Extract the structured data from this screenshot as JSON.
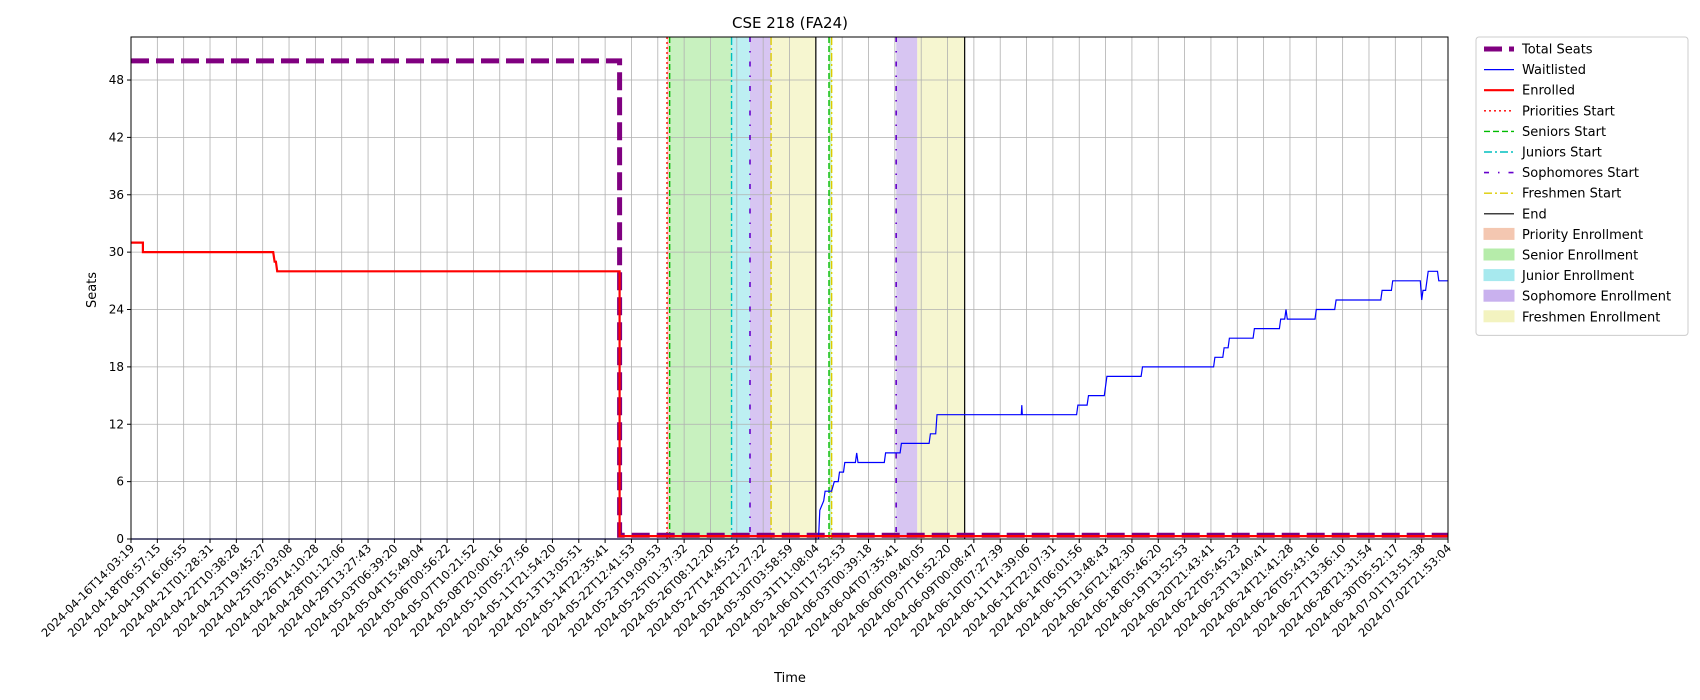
{
  "chart_data": {
    "type": "line",
    "title": "CSE 218 (FA24)",
    "xlabel": "Time",
    "ylabel": "Seats",
    "ylim": [
      0,
      52.5
    ],
    "yticks": [
      0,
      6,
      12,
      18,
      24,
      30,
      36,
      42,
      48
    ],
    "grid": true,
    "legend_position": "outside top-right",
    "x_tick_labels": [
      "2024-04-16T14:03:19",
      "2024-04-18T06:57:15",
      "2024-04-19T16:06:55",
      "2024-04-21T01:28:31",
      "2024-04-22T10:38:28",
      "2024-04-23T19:45:27",
      "2024-04-25T05:03:08",
      "2024-04-26T14:10:28",
      "2024-04-28T01:12:06",
      "2024-04-29T13:27:43",
      "2024-05-03T06:39:20",
      "2024-05-04T15:49:04",
      "2024-05-06T00:56:22",
      "2024-05-07T10:21:52",
      "2024-05-08T20:00:16",
      "2024-05-10T05:27:56",
      "2024-05-11T21:54:20",
      "2024-05-13T13:05:51",
      "2024-05-14T22:35:41",
      "2024-05-22T12:41:53",
      "2024-05-23T19:09:53",
      "2024-05-25T01:37:32",
      "2024-05-26T08:12:20",
      "2024-05-27T14:45:25",
      "2024-05-28T21:27:22",
      "2024-05-30T03:58:59",
      "2024-05-31T11:08:04",
      "2024-06-01T17:52:53",
      "2024-06-03T00:39:18",
      "2024-06-04T07:35:41",
      "2024-06-06T09:40:05",
      "2024-06-07T16:52:20",
      "2024-06-09T00:08:47",
      "2024-06-10T07:27:39",
      "2024-06-11T14:39:06",
      "2024-06-12T22:07:31",
      "2024-06-14T06:01:56",
      "2024-06-15T13:48:43",
      "2024-06-16T21:42:30",
      "2024-06-18T05:46:20",
      "2024-06-19T13:52:53",
      "2024-06-20T21:43:41",
      "2024-06-22T05:45:23",
      "2024-06-23T13:40:41",
      "2024-06-24T21:41:28",
      "2024-06-26T05:43:16",
      "2024-06-27T13:36:10",
      "2024-06-28T21:31:54",
      "2024-06-30T05:52:17",
      "2024-07-01T13:51:38",
      "2024-07-02T21:53:04"
    ],
    "x_range": [
      0,
      50
    ],
    "series": [
      {
        "name": "Total Seats",
        "color": "#800080",
        "style": "dashed-thick",
        "points": [
          [
            0,
            50
          ],
          [
            18.55,
            50
          ],
          [
            18.55,
            0.4
          ],
          [
            50,
            0.4
          ]
        ]
      },
      {
        "name": "Waitlisted",
        "color": "#0000ff",
        "style": "solid",
        "points": [
          [
            0,
            0
          ],
          [
            26.1,
            0
          ],
          [
            26.15,
            3
          ],
          [
            26.3,
            4
          ],
          [
            26.35,
            5
          ],
          [
            26.6,
            5
          ],
          [
            26.7,
            6
          ],
          [
            26.85,
            6
          ],
          [
            26.9,
            7
          ],
          [
            27.05,
            7
          ],
          [
            27.1,
            8
          ],
          [
            27.5,
            8
          ],
          [
            27.55,
            9
          ],
          [
            27.6,
            8
          ],
          [
            28.6,
            8
          ],
          [
            28.65,
            9
          ],
          [
            29.2,
            9
          ],
          [
            29.25,
            10
          ],
          [
            30.3,
            10
          ],
          [
            30.35,
            11
          ],
          [
            30.55,
            11
          ],
          [
            30.6,
            13
          ],
          [
            33.8,
            13
          ],
          [
            33.82,
            14
          ],
          [
            33.84,
            13
          ],
          [
            35.9,
            13
          ],
          [
            35.95,
            14
          ],
          [
            36.3,
            14
          ],
          [
            36.35,
            15
          ],
          [
            36.95,
            15
          ],
          [
            37.0,
            16
          ],
          [
            37.05,
            17
          ],
          [
            38.35,
            17
          ],
          [
            38.4,
            18
          ],
          [
            41.1,
            18
          ],
          [
            41.15,
            19
          ],
          [
            41.45,
            19
          ],
          [
            41.5,
            20
          ],
          [
            41.65,
            20
          ],
          [
            41.7,
            21
          ],
          [
            42.6,
            21
          ],
          [
            42.65,
            22
          ],
          [
            43.6,
            22
          ],
          [
            43.65,
            23
          ],
          [
            43.8,
            23
          ],
          [
            43.85,
            24
          ],
          [
            43.9,
            23
          ],
          [
            44.95,
            23
          ],
          [
            45,
            24
          ],
          [
            45.7,
            24
          ],
          [
            45.75,
            25
          ],
          [
            47.45,
            25
          ],
          [
            47.5,
            26
          ],
          [
            47.85,
            26
          ],
          [
            47.9,
            27
          ],
          [
            48.95,
            27
          ],
          [
            49,
            25
          ],
          [
            49.05,
            26
          ],
          [
            49.15,
            26
          ],
          [
            49.2,
            27
          ],
          [
            49.25,
            28
          ],
          [
            49.6,
            28
          ],
          [
            49.65,
            27
          ],
          [
            50,
            27
          ]
        ]
      },
      {
        "name": "Enrolled",
        "color": "#ff0000",
        "style": "solid-thick",
        "points": [
          [
            0,
            31
          ],
          [
            0.45,
            31
          ],
          [
            0.45,
            30
          ],
          [
            5.4,
            30
          ],
          [
            5.45,
            29
          ],
          [
            5.5,
            29
          ],
          [
            5.55,
            28
          ],
          [
            18.55,
            28
          ],
          [
            18.55,
            0.3
          ],
          [
            50,
            0.3
          ]
        ]
      }
    ],
    "vertical_lines": [
      {
        "name": "Priorities Start",
        "color": "#ff0000",
        "style": "dotted",
        "x": [
          20.35
        ]
      },
      {
        "name": "Seniors Start",
        "color": "#00bb00",
        "style": "dashed",
        "x": [
          20.45,
          26.5
        ]
      },
      {
        "name": "Juniors Start",
        "color": "#00bfbf",
        "style": "dashdot",
        "x": [
          22.8
        ]
      },
      {
        "name": "Sophomores Start",
        "color": "#6600cc",
        "style": "sparse-dashdot",
        "x": [
          23.5,
          29.05
        ]
      },
      {
        "name": "Freshmen Start",
        "color": "#ddcc00",
        "style": "dashdot",
        "x": [
          24.3,
          26.6
        ]
      },
      {
        "name": "End",
        "color": "#000000",
        "style": "solid",
        "x": [
          26.0,
          31.65
        ]
      }
    ],
    "spans": [
      {
        "name": "Priority Enrollment",
        "color": "#f4c7b1",
        "from": 20.35,
        "to": 20.45
      },
      {
        "name": "Senior Enrollment",
        "color": "#b6ecaa",
        "from": 20.45,
        "to": 22.8
      },
      {
        "name": "Junior Enrollment",
        "color": "#a7e9ee",
        "from": 22.8,
        "to": 23.5
      },
      {
        "name": "Sophomore Enrollment",
        "color": "#c9b1ee",
        "from": 23.5,
        "to": 24.3
      },
      {
        "name": "Freshmen Enrollment",
        "color": "#f3f3c0",
        "from": 24.3,
        "to": 26.0
      },
      {
        "name": "Senior Enrollment",
        "color": "#b6ecaa",
        "from": 26.5,
        "to": 26.6
      },
      {
        "name": "Sophomore Enrollment",
        "color": "#c9b1ee",
        "from": 29.05,
        "to": 29.85
      },
      {
        "name": "Freshmen Enrollment",
        "color": "#f3f3c0",
        "from": 29.85,
        "to": 31.65
      }
    ],
    "legend": [
      {
        "label": "Total Seats",
        "kind": "line",
        "color": "#800080",
        "style": "dashed-thick"
      },
      {
        "label": "Waitlisted",
        "kind": "line",
        "color": "#0000ff",
        "style": "solid"
      },
      {
        "label": "Enrolled",
        "kind": "line",
        "color": "#ff0000",
        "style": "solid-thick"
      },
      {
        "label": "Priorities Start",
        "kind": "line",
        "color": "#ff0000",
        "style": "dotted"
      },
      {
        "label": "Seniors Start",
        "kind": "line",
        "color": "#00bb00",
        "style": "dashed"
      },
      {
        "label": "Juniors Start",
        "kind": "line",
        "color": "#00bfbf",
        "style": "dashdot"
      },
      {
        "label": "Sophomores Start",
        "kind": "line",
        "color": "#6600cc",
        "style": "sparse-dashdot"
      },
      {
        "label": "Freshmen Start",
        "kind": "line",
        "color": "#ddcc00",
        "style": "dashdot"
      },
      {
        "label": "End",
        "kind": "line",
        "color": "#000000",
        "style": "solid"
      },
      {
        "label": "Priority Enrollment",
        "kind": "patch",
        "color": "#f4c7b1"
      },
      {
        "label": "Senior Enrollment",
        "kind": "patch",
        "color": "#b6ecaa"
      },
      {
        "label": "Junior Enrollment",
        "kind": "patch",
        "color": "#a7e9ee"
      },
      {
        "label": "Sophomore Enrollment",
        "kind": "patch",
        "color": "#c9b1ee"
      },
      {
        "label": "Freshmen Enrollment",
        "kind": "patch",
        "color": "#f3f3c0"
      }
    ]
  }
}
